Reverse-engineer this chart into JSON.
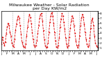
{
  "title": "Milwaukee Weather - Solar Radiation\nper Day KW/m2",
  "line_color": "#dd0000",
  "line_style": "--",
  "line_width": 0.6,
  "marker": "s",
  "marker_size": 0.8,
  "grid_color": "#aaaaaa",
  "grid_style": "--",
  "background_color": "#ffffff",
  "ylim": [
    0.5,
    8.5
  ],
  "yticks": [
    1,
    2,
    3,
    4,
    5,
    6,
    7,
    8
  ],
  "values": [
    1.8,
    3.2,
    2.1,
    1.5,
    2.2,
    3.8,
    5.2,
    6.0,
    5.5,
    4.2,
    3.5,
    2.0,
    1.5,
    1.2,
    2.8,
    4.5,
    5.8,
    6.8,
    7.5,
    7.0,
    5.5,
    3.8,
    2.2,
    1.5,
    1.2,
    1.0,
    1.8,
    3.5,
    5.2,
    6.5,
    7.8,
    7.2,
    6.0,
    4.2,
    2.8,
    1.5,
    1.2,
    1.5,
    2.5,
    4.0,
    5.5,
    7.0,
    7.8,
    8.0,
    6.5,
    4.5,
    2.8,
    1.5,
    1.0,
    1.2,
    2.0,
    4.2,
    6.2,
    7.5,
    8.2,
    7.5,
    6.0,
    4.2,
    2.5,
    1.2,
    1.0,
    1.5,
    3.0,
    5.2,
    6.8,
    8.0,
    7.5,
    6.2,
    4.8,
    3.0,
    1.8,
    1.0,
    1.5,
    3.2,
    5.0,
    6.5,
    7.5,
    7.0,
    5.5,
    4.0,
    2.5,
    1.5,
    1.0,
    1.5,
    3.5,
    5.5,
    7.0,
    7.8,
    7.2,
    5.8,
    4.2,
    2.8,
    1.8,
    1.2,
    1.5,
    3.0,
    5.0,
    6.5,
    7.0,
    5.5,
    3.5,
    2.0,
    1.5,
    1.2
  ],
  "vgrid_positions": [
    11.5,
    23.5,
    35.5,
    47.5,
    59.5,
    71.5,
    83.5,
    95.5
  ],
  "title_fontsize": 4.5,
  "tick_fontsize": 3.2,
  "n_points": 104
}
